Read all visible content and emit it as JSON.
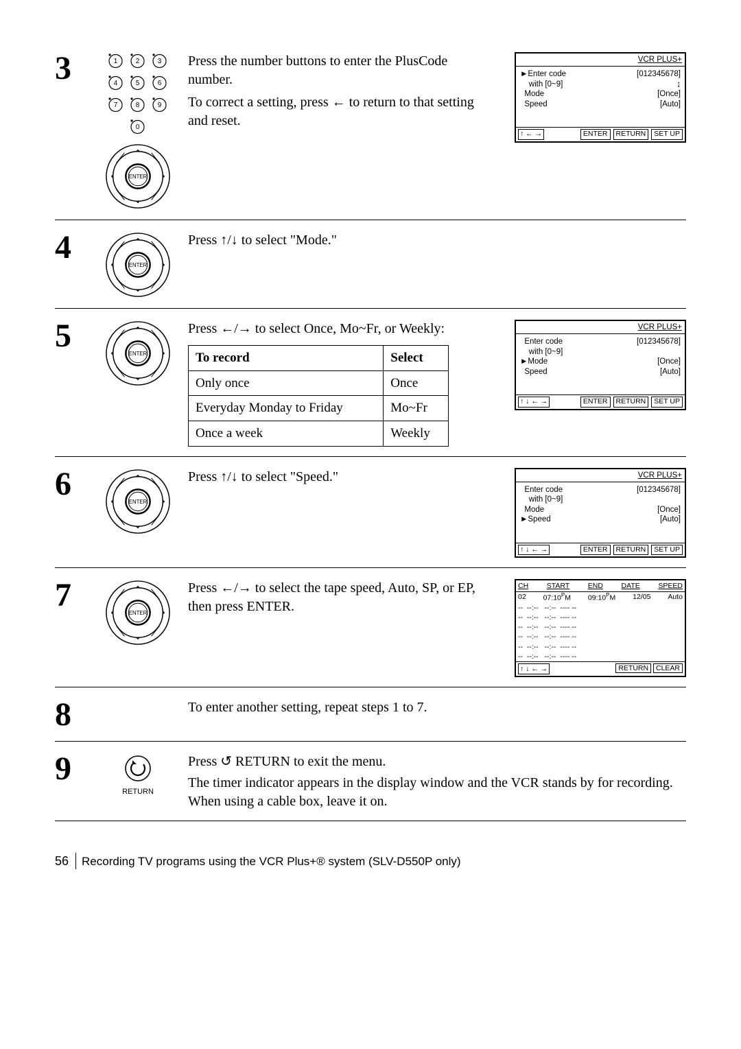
{
  "steps": {
    "s3": {
      "num": "3",
      "text1": "Press the number buttons to enter the PlusCode number.",
      "text2": "To correct a setting, press ← to return to that setting and reset.",
      "keypad": [
        "1",
        "2",
        "3",
        "4",
        "5",
        "6",
        "7",
        "8",
        "9",
        "0"
      ],
      "screen": {
        "title": "VCR PLUS+",
        "lines": [
          {
            "left": "Enter code",
            "right": "[012345678]",
            "pointer": true,
            "arrow": false
          },
          {
            "left": "  with [0~9]",
            "right": "↨",
            "pointer": false,
            "arrow": true
          },
          {
            "left": "Mode",
            "right": "[Once]",
            "pointer": false,
            "arrow": false
          },
          {
            "left": "Speed",
            "right": "[Auto]",
            "pointer": false,
            "arrow": false
          }
        ],
        "footer_arrows": "↑ ← →",
        "footer_btns": [
          "ENTER",
          "RETURN",
          "SET UP"
        ]
      }
    },
    "s4": {
      "num": "4",
      "text": "Press ↑/↓ to select \"Mode.\""
    },
    "s5": {
      "num": "5",
      "text": "Press ←/→ to select Once, Mo~Fr, or Weekly:",
      "table": {
        "head": [
          "To record",
          "Select"
        ],
        "rows": [
          [
            "Only once",
            "Once"
          ],
          [
            "Everyday Monday to Friday",
            "Mo~Fr"
          ],
          [
            "Once a week",
            "Weekly"
          ]
        ]
      },
      "screen": {
        "title": "VCR PLUS+",
        "lines": [
          {
            "left": "Enter code",
            "right": "[012345678]",
            "pointer": false
          },
          {
            "left": "  with [0~9]",
            "right": "",
            "pointer": false
          },
          {
            "left": "Mode",
            "right": "[Once]",
            "pointer": true
          },
          {
            "left": "Speed",
            "right": "[Auto]",
            "pointer": false
          }
        ],
        "footer_arrows": "↑ ↓ ← →",
        "footer_btns": [
          "ENTER",
          "RETURN",
          "SET UP"
        ]
      }
    },
    "s6": {
      "num": "6",
      "text": "Press ↑/↓ to select \"Speed.\"",
      "screen": {
        "title": "VCR PLUS+",
        "lines": [
          {
            "left": "Enter code",
            "right": "[012345678]",
            "pointer": false
          },
          {
            "left": "  with [0~9]",
            "right": "",
            "pointer": false
          },
          {
            "left": "Mode",
            "right": "[Once]",
            "pointer": false
          },
          {
            "left": "Speed",
            "right": "[Auto]",
            "pointer": true
          }
        ],
        "footer_arrows": "↑ ↓ ← →",
        "footer_btns": [
          "ENTER",
          "RETURN",
          "SET UP"
        ]
      }
    },
    "s7": {
      "num": "7",
      "text": "Press ←/→ to select the tape speed, Auto, SP, or EP, then press ENTER.",
      "screen": {
        "head": [
          "CH",
          "START",
          "END",
          "DATE",
          "SPEED"
        ],
        "row1": {
          "ch": "02",
          "start": "07:10",
          "startp": "P",
          "startm": "M",
          "end": "09:10",
          "endp": "P",
          "endm": "M",
          "date": "12/05",
          "speed": "Auto"
        },
        "blank": "--  --:--   --:--  ---- --",
        "footer_arrows": "↑ ↓ ← →",
        "footer_btns": [
          "RETURN",
          "CLEAR"
        ]
      }
    },
    "s8": {
      "num": "8",
      "text": "To enter another setting, repeat steps 1 to 7."
    },
    "s9": {
      "num": "9",
      "text1": "Press ↺ RETURN to exit the menu.",
      "text2": "The timer indicator appears in the display window and the VCR stands by for recording.  When using a cable box, leave it on.",
      "return_label": "RETURN"
    }
  },
  "footer": {
    "page_num": "56",
    "title": "Recording TV programs using the VCR Plus+® system (SLV-D550P only)"
  }
}
